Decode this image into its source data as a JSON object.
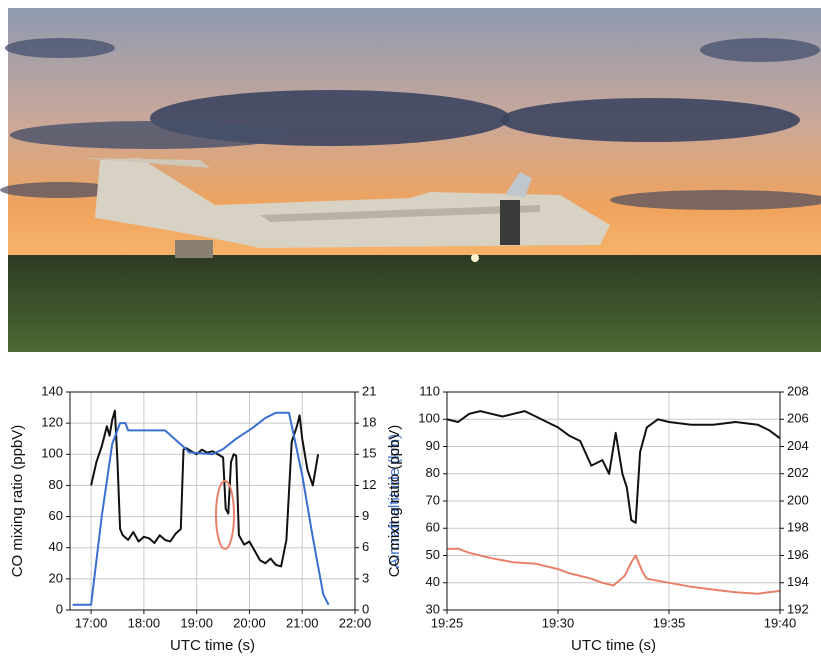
{
  "chart_data": [
    {
      "type": "line",
      "ylabel": "CO mixing ratio (ppbV)",
      "y2label": "Aircraft altitude (km)",
      "xlabel": "UTC  time (s)",
      "xlim": [
        16.6,
        22
      ],
      "xticks": [
        {
          "value": 17,
          "label": "17:00"
        },
        {
          "value": 18,
          "label": "18:00"
        },
        {
          "value": 19,
          "label": "19:00"
        },
        {
          "value": 20,
          "label": "20:00"
        },
        {
          "value": 21,
          "label": "21:00"
        },
        {
          "value": 22,
          "label": "22:00"
        }
      ],
      "ylim": [
        0,
        140
      ],
      "yticks": [
        0,
        20,
        40,
        60,
        80,
        100,
        120,
        140
      ],
      "y2lim": [
        0,
        21
      ],
      "y2ticks": [
        0,
        3,
        6,
        9,
        12,
        15,
        18,
        21
      ],
      "grid": true,
      "series": [
        {
          "color": "#111111",
          "x": [
            17.0,
            17.1,
            17.2,
            17.3,
            17.35,
            17.4,
            17.45,
            17.5,
            17.55,
            17.6,
            17.7,
            17.8,
            17.9,
            18.0,
            18.1,
            18.2,
            18.3,
            18.4,
            18.5,
            18.6,
            18.7,
            18.75,
            18.8,
            18.9,
            19.0,
            19.1,
            19.2,
            19.3,
            19.4,
            19.5,
            19.55,
            19.6,
            19.65,
            19.7,
            19.75,
            19.8,
            19.9,
            20.0,
            20.1,
            20.2,
            20.3,
            20.4,
            20.5,
            20.6,
            20.7,
            20.8,
            20.9,
            20.95,
            21.0,
            21.1,
            21.2,
            21.3
          ],
          "values": [
            80,
            95,
            105,
            118,
            112,
            122,
            128,
            95,
            52,
            48,
            45,
            50,
            44,
            47,
            46,
            43,
            48,
            45,
            44,
            49,
            52,
            103,
            104,
            102,
            100,
            103,
            101,
            102,
            100,
            98,
            65,
            62,
            95,
            100,
            99,
            48,
            42,
            44,
            38,
            32,
            30,
            33,
            29,
            28,
            45,
            108,
            118,
            125,
            110,
            90,
            80,
            100
          ]
        },
        {
          "color": "#3a6fd0",
          "axis": "y2",
          "x": [
            16.65,
            16.95,
            17.0,
            17.2,
            17.4,
            17.55,
            17.65,
            17.7,
            18.4,
            18.8,
            18.85,
            19.3,
            19.5,
            19.75,
            20.05,
            20.3,
            20.5,
            20.75,
            21.0,
            21.2,
            21.4,
            21.5
          ],
          "values": [
            0.5,
            0.5,
            0.5,
            9,
            16,
            18,
            18,
            17.3,
            17.3,
            15.5,
            15.2,
            15,
            15.5,
            16.5,
            17.5,
            18.5,
            19,
            19,
            13,
            7,
            1.5,
            0.5
          ]
        }
      ]
    },
    {
      "type": "line",
      "ylabel": "CO mixing ratio (ppbV)",
      "xlabel": "UTC  time (s)",
      "xlim": [
        25,
        40
      ],
      "xticks": [
        {
          "value": 25,
          "label": "19:25"
        },
        {
          "value": 30,
          "label": "19:30"
        },
        {
          "value": 35,
          "label": "19:35"
        },
        {
          "value": 40,
          "label": "19:40"
        }
      ],
      "ylim": [
        30,
        110
      ],
      "yticks": [
        30,
        40,
        50,
        60,
        70,
        80,
        90,
        100,
        110
      ],
      "y2lim": [
        192,
        208
      ],
      "y2ticks": [
        192,
        194,
        196,
        198,
        200,
        202,
        204,
        206,
        208
      ],
      "grid": true,
      "series": [
        {
          "color": "#111111",
          "x": [
            25,
            25.5,
            26,
            26.5,
            27,
            27.5,
            28,
            28.5,
            29,
            29.5,
            30,
            30.5,
            31,
            31.5,
            32,
            32.3,
            32.6,
            32.9,
            33.1,
            33.3,
            33.5,
            33.7,
            34,
            34.5,
            35,
            36,
            37,
            38,
            39,
            39.5,
            40
          ],
          "values": [
            100,
            99,
            102,
            103,
            102,
            101,
            102,
            103,
            101,
            99,
            97,
            94,
            92,
            83,
            85,
            80,
            95,
            80,
            75,
            63,
            62,
            88,
            97,
            100,
            99,
            98,
            98,
            99,
            98,
            96,
            93
          ]
        },
        {
          "color": "#e8806a",
          "axis": "y2",
          "x": [
            25,
            25.5,
            26,
            27,
            28,
            29,
            30,
            30.5,
            31,
            31.5,
            32,
            32.5,
            33,
            33.3,
            33.5,
            33.8,
            34,
            35,
            36,
            37,
            38,
            39,
            40
          ],
          "values": [
            196.5,
            196.5,
            196.2,
            195.8,
            195.5,
            195.4,
            195,
            194.7,
            194.5,
            194.3,
            194,
            193.8,
            194.5,
            195.5,
            196,
            194.8,
            194.3,
            194,
            193.7,
            193.5,
            193.3,
            193.2,
            193.4
          ]
        }
      ]
    }
  ]
}
